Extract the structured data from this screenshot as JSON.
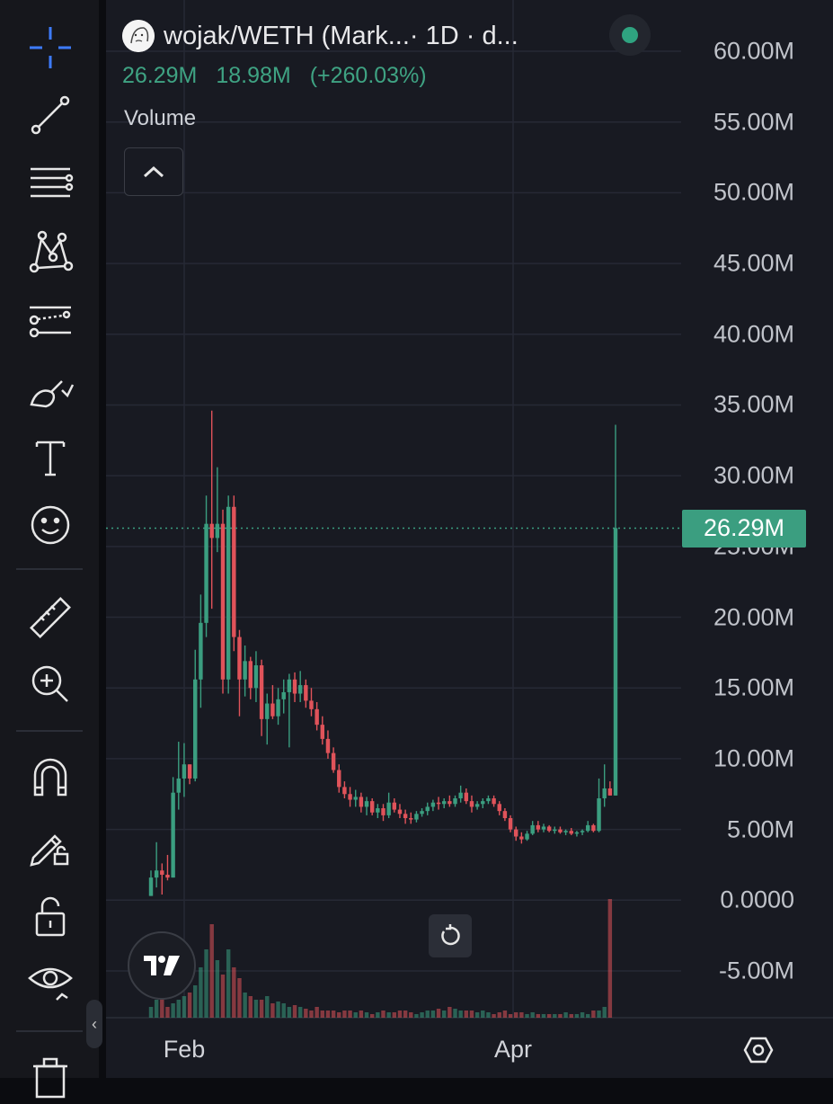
{
  "toolbar": {
    "tools": [
      {
        "name": "crosshair-icon",
        "label": "Crosshair"
      },
      {
        "name": "trend-line-icon",
        "label": "Trend Line"
      },
      {
        "name": "horizontal-lines-icon",
        "label": "Lines"
      },
      {
        "name": "pattern-icon",
        "label": "Patterns"
      },
      {
        "name": "forecast-icon",
        "label": "Prediction and measurement"
      },
      {
        "name": "brush-icon",
        "label": "Brush"
      },
      {
        "name": "text-icon",
        "label": "Text"
      },
      {
        "name": "emoji-icon",
        "label": "Icons"
      },
      {
        "name": "ruler-icon",
        "label": "Measure"
      },
      {
        "name": "zoom-in-icon",
        "label": "Zoom In"
      },
      {
        "name": "magnet-icon",
        "label": "Magnet"
      },
      {
        "name": "lock-drawing-icon",
        "label": "Stay in drawing mode"
      },
      {
        "name": "lock-icon",
        "label": "Lock all drawings"
      },
      {
        "name": "eye-icon",
        "label": "Hide all drawings"
      },
      {
        "name": "trash-icon",
        "label": "Remove drawings"
      }
    ],
    "collapse_glyph": "‹"
  },
  "header": {
    "symbol": "wojak/WETH (Mark...",
    "interval": " · 1D · d...",
    "status_color": "#2fa380"
  },
  "values": {
    "last": "26.29M",
    "change": "18.98M",
    "change_pct": "(+260.03%)"
  },
  "volume_label": "Volume",
  "price_tag": "26.29M",
  "colors": {
    "up": "#3b9e80",
    "down": "#e0535a",
    "background": "#181a22",
    "grid": "#262935",
    "tag": "#3b9e80"
  },
  "y_axis": {
    "min": -5000000,
    "max": 60000000,
    "step": 5000000,
    "labels": [
      "60.00M",
      "55.00M",
      "50.00M",
      "45.00M",
      "40.00M",
      "35.00M",
      "30.00M",
      "25.00M",
      "20.00M",
      "15.00M",
      "10.00M",
      "5.00M",
      "0.0000",
      "-5.00M"
    ]
  },
  "x_axis": {
    "labels": [
      "Feb",
      "Apr"
    ]
  },
  "chart_data": {
    "type": "candlestick",
    "y_unit": "market cap",
    "ylim": [
      -5000000,
      60000000
    ],
    "last_value": 26290000,
    "x_labels": [
      "Feb",
      "Apr"
    ],
    "candles": [
      {
        "o": 0.3,
        "h": 2.1,
        "l": 0.3,
        "c": 1.6
      },
      {
        "o": 1.6,
        "h": 4.1,
        "l": 0.9,
        "c": 2.1
      },
      {
        "o": 2.1,
        "h": 2.6,
        "l": 0.4,
        "c": 1.8
      },
      {
        "o": 1.8,
        "h": 3.2,
        "l": 1.4,
        "c": 1.6
      },
      {
        "o": 1.6,
        "h": 8.7,
        "l": 1.6,
        "c": 7.6
      },
      {
        "o": 7.6,
        "h": 11.2,
        "l": 6.4,
        "c": 8.6
      },
      {
        "o": 8.6,
        "h": 11.1,
        "l": 7.3,
        "c": 9.6
      },
      {
        "o": 9.6,
        "h": 9.6,
        "l": 8.2,
        "c": 8.6
      },
      {
        "o": 8.6,
        "h": 17.7,
        "l": 8.4,
        "c": 15.6
      },
      {
        "o": 15.6,
        "h": 21.6,
        "l": 13.6,
        "c": 19.6
      },
      {
        "o": 19.6,
        "h": 28.6,
        "l": 18.6,
        "c": 26.6
      },
      {
        "o": 26.6,
        "h": 34.6,
        "l": 20.6,
        "c": 25.6
      },
      {
        "o": 25.6,
        "h": 30.6,
        "l": 24.6,
        "c": 26.6
      },
      {
        "o": 26.6,
        "h": 27.6,
        "l": 14.6,
        "c": 15.6
      },
      {
        "o": 15.6,
        "h": 28.6,
        "l": 14.6,
        "c": 27.8
      },
      {
        "o": 27.8,
        "h": 28.6,
        "l": 17.6,
        "c": 18.6
      },
      {
        "o": 18.6,
        "h": 19.1,
        "l": 13.0,
        "c": 15.6
      },
      {
        "o": 15.6,
        "h": 18.0,
        "l": 14.4,
        "c": 16.9
      },
      {
        "o": 16.9,
        "h": 17.2,
        "l": 14.2,
        "c": 15.0
      },
      {
        "o": 15.0,
        "h": 17.6,
        "l": 14.0,
        "c": 16.6
      },
      {
        "o": 16.6,
        "h": 17.0,
        "l": 11.6,
        "c": 12.8
      },
      {
        "o": 12.8,
        "h": 14.6,
        "l": 11.0,
        "c": 13.9
      },
      {
        "o": 13.9,
        "h": 15.2,
        "l": 12.8,
        "c": 13.0
      },
      {
        "o": 13.0,
        "h": 15.0,
        "l": 12.4,
        "c": 14.2
      },
      {
        "o": 14.2,
        "h": 15.6,
        "l": 13.2,
        "c": 14.7
      },
      {
        "o": 14.7,
        "h": 16.0,
        "l": 10.8,
        "c": 15.6
      },
      {
        "o": 15.6,
        "h": 16.1,
        "l": 14.0,
        "c": 14.6
      },
      {
        "o": 14.6,
        "h": 16.2,
        "l": 14.0,
        "c": 15.2
      },
      {
        "o": 15.2,
        "h": 15.6,
        "l": 13.6,
        "c": 14.1
      },
      {
        "o": 14.1,
        "h": 15.0,
        "l": 13.0,
        "c": 13.5
      },
      {
        "o": 13.5,
        "h": 14.0,
        "l": 12.0,
        "c": 12.4
      },
      {
        "o": 12.4,
        "h": 13.0,
        "l": 11.0,
        "c": 11.4
      },
      {
        "o": 11.4,
        "h": 12.0,
        "l": 10.0,
        "c": 10.4
      },
      {
        "o": 10.4,
        "h": 10.8,
        "l": 9.0,
        "c": 9.2
      },
      {
        "o": 9.2,
        "h": 9.6,
        "l": 7.6,
        "c": 8.0
      },
      {
        "o": 8.0,
        "h": 8.4,
        "l": 7.2,
        "c": 7.5
      },
      {
        "o": 7.5,
        "h": 8.0,
        "l": 6.6,
        "c": 7.1
      },
      {
        "o": 7.1,
        "h": 7.8,
        "l": 6.6,
        "c": 7.3
      },
      {
        "o": 7.3,
        "h": 7.6,
        "l": 6.2,
        "c": 6.6
      },
      {
        "o": 6.6,
        "h": 7.3,
        "l": 6.0,
        "c": 7.0
      },
      {
        "o": 7.0,
        "h": 7.2,
        "l": 6.0,
        "c": 6.2
      },
      {
        "o": 6.2,
        "h": 6.8,
        "l": 5.8,
        "c": 6.5
      },
      {
        "o": 6.5,
        "h": 6.8,
        "l": 5.6,
        "c": 6.0
      },
      {
        "o": 6.0,
        "h": 7.6,
        "l": 5.8,
        "c": 6.9
      },
      {
        "o": 6.9,
        "h": 7.2,
        "l": 6.2,
        "c": 6.4
      },
      {
        "o": 6.4,
        "h": 6.8,
        "l": 5.8,
        "c": 6.1
      },
      {
        "o": 6.1,
        "h": 6.4,
        "l": 5.4,
        "c": 5.8
      },
      {
        "o": 5.8,
        "h": 6.2,
        "l": 5.4,
        "c": 5.7
      },
      {
        "o": 5.7,
        "h": 6.3,
        "l": 5.5,
        "c": 6.1
      },
      {
        "o": 6.1,
        "h": 6.5,
        "l": 5.9,
        "c": 6.3
      },
      {
        "o": 6.3,
        "h": 6.9,
        "l": 6.0,
        "c": 6.6
      },
      {
        "o": 6.6,
        "h": 7.1,
        "l": 6.3,
        "c": 6.9
      },
      {
        "o": 6.9,
        "h": 7.3,
        "l": 6.4,
        "c": 6.8
      },
      {
        "o": 6.8,
        "h": 7.2,
        "l": 6.5,
        "c": 7.0
      },
      {
        "o": 7.0,
        "h": 7.4,
        "l": 6.6,
        "c": 6.8
      },
      {
        "o": 6.8,
        "h": 7.4,
        "l": 6.6,
        "c": 7.2
      },
      {
        "o": 7.2,
        "h": 8.1,
        "l": 6.9,
        "c": 7.6
      },
      {
        "o": 7.6,
        "h": 7.9,
        "l": 6.8,
        "c": 7.0
      },
      {
        "o": 7.0,
        "h": 7.4,
        "l": 6.2,
        "c": 6.6
      },
      {
        "o": 6.6,
        "h": 7.0,
        "l": 6.4,
        "c": 6.8
      },
      {
        "o": 6.8,
        "h": 7.2,
        "l": 6.5,
        "c": 7.0
      },
      {
        "o": 7.0,
        "h": 7.4,
        "l": 6.8,
        "c": 7.2
      },
      {
        "o": 7.2,
        "h": 7.4,
        "l": 6.6,
        "c": 6.8
      },
      {
        "o": 6.8,
        "h": 7.0,
        "l": 6.0,
        "c": 6.3
      },
      {
        "o": 6.3,
        "h": 6.5,
        "l": 5.6,
        "c": 5.8
      },
      {
        "o": 5.8,
        "h": 6.0,
        "l": 4.8,
        "c": 5.0
      },
      {
        "o": 5.0,
        "h": 5.2,
        "l": 4.2,
        "c": 4.5
      },
      {
        "o": 4.5,
        "h": 4.8,
        "l": 4.0,
        "c": 4.3
      },
      {
        "o": 4.3,
        "h": 4.9,
        "l": 4.2,
        "c": 4.7
      },
      {
        "o": 4.7,
        "h": 5.6,
        "l": 4.6,
        "c": 5.3
      },
      {
        "o": 5.3,
        "h": 5.6,
        "l": 4.8,
        "c": 5.0
      },
      {
        "o": 5.0,
        "h": 5.4,
        "l": 4.8,
        "c": 5.2
      },
      {
        "o": 5.2,
        "h": 5.3,
        "l": 4.8,
        "c": 4.9
      },
      {
        "o": 4.9,
        "h": 5.2,
        "l": 4.7,
        "c": 5.0
      },
      {
        "o": 5.0,
        "h": 5.2,
        "l": 4.7,
        "c": 4.8
      },
      {
        "o": 4.8,
        "h": 5.0,
        "l": 4.6,
        "c": 4.9
      },
      {
        "o": 4.9,
        "h": 5.1,
        "l": 4.6,
        "c": 4.7
      },
      {
        "o": 4.7,
        "h": 4.9,
        "l": 4.5,
        "c": 4.8
      },
      {
        "o": 4.8,
        "h": 5.0,
        "l": 4.6,
        "c": 4.9
      },
      {
        "o": 4.9,
        "h": 5.6,
        "l": 4.8,
        "c": 5.3
      },
      {
        "o": 5.3,
        "h": 5.4,
        "l": 4.8,
        "c": 4.9
      },
      {
        "o": 4.9,
        "h": 8.6,
        "l": 4.8,
        "c": 7.2
      },
      {
        "o": 7.2,
        "h": 9.6,
        "l": 6.6,
        "c": 7.9
      },
      {
        "o": 7.9,
        "h": 8.4,
        "l": 7.4,
        "c": 7.4
      },
      {
        "o": 7.4,
        "h": 33.6,
        "l": 7.4,
        "c": 26.3
      }
    ],
    "volume": [
      0.3,
      0.5,
      0.6,
      0.3,
      0.4,
      0.5,
      0.6,
      0.7,
      0.9,
      1.4,
      1.9,
      2.6,
      1.6,
      1.2,
      1.9,
      1.4,
      1.1,
      0.7,
      0.6,
      0.5,
      0.5,
      0.6,
      0.4,
      0.45,
      0.4,
      0.3,
      0.35,
      0.3,
      0.25,
      0.2,
      0.3,
      0.2,
      0.2,
      0.2,
      0.15,
      0.2,
      0.2,
      0.15,
      0.2,
      0.15,
      0.1,
      0.15,
      0.2,
      0.15,
      0.15,
      0.2,
      0.2,
      0.15,
      0.1,
      0.15,
      0.2,
      0.2,
      0.25,
      0.2,
      0.3,
      0.25,
      0.2,
      0.2,
      0.2,
      0.15,
      0.2,
      0.15,
      0.1,
      0.15,
      0.2,
      0.1,
      0.15,
      0.15,
      0.1,
      0.15,
      0.1,
      0.1,
      0.1,
      0.1,
      0.1,
      0.15,
      0.1,
      0.1,
      0.15,
      0.1,
      0.2,
      0.2,
      0.3,
      3.3
    ]
  }
}
